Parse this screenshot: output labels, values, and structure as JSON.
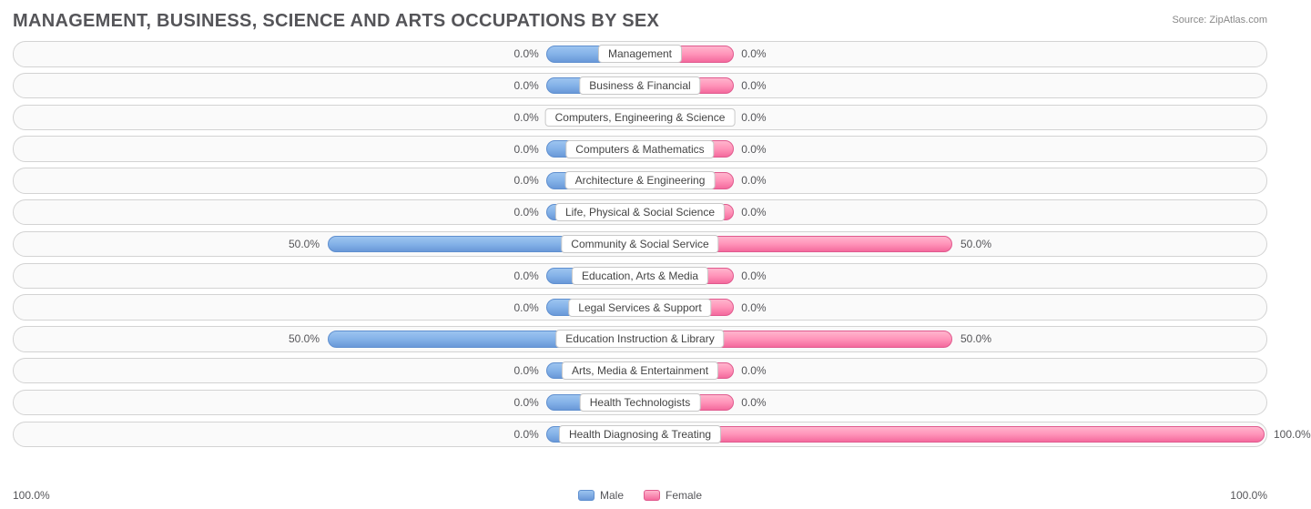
{
  "title": "MANAGEMENT, BUSINESS, SCIENCE AND ARTS OCCUPATIONS BY SEX",
  "source": "Source: ZipAtlas.com",
  "axis": {
    "left": "100.0%",
    "right": "100.0%",
    "max": 100.0
  },
  "legend": {
    "male": "Male",
    "female": "Female"
  },
  "chart": {
    "type": "diverging-bar",
    "min_bar_pct": 15.0,
    "background_color": "#ffffff",
    "row_bg": "#fafafa",
    "row_border": "#d3d3d3",
    "male_colors": [
      "#9cc4f0",
      "#84b2e8",
      "#6998d8"
    ],
    "female_colors": [
      "#ffb5cd",
      "#ff94b9",
      "#f46a9d"
    ],
    "label_box_bg": "#ffffff",
    "label_box_border": "#c9c9c9",
    "text_color": "#555559",
    "label_fontsize": 12,
    "title_color": "#555559",
    "title_fontsize": 20
  },
  "categories": [
    {
      "label": "Management",
      "male": 0.0,
      "female": 0.0
    },
    {
      "label": "Business & Financial",
      "male": 0.0,
      "female": 0.0
    },
    {
      "label": "Computers, Engineering & Science",
      "male": 0.0,
      "female": 0.0
    },
    {
      "label": "Computers & Mathematics",
      "male": 0.0,
      "female": 0.0
    },
    {
      "label": "Architecture & Engineering",
      "male": 0.0,
      "female": 0.0
    },
    {
      "label": "Life, Physical & Social Science",
      "male": 0.0,
      "female": 0.0
    },
    {
      "label": "Community & Social Service",
      "male": 50.0,
      "female": 50.0
    },
    {
      "label": "Education, Arts & Media",
      "male": 0.0,
      "female": 0.0
    },
    {
      "label": "Legal Services & Support",
      "male": 0.0,
      "female": 0.0
    },
    {
      "label": "Education Instruction & Library",
      "male": 50.0,
      "female": 50.0
    },
    {
      "label": "Arts, Media & Entertainment",
      "male": 0.0,
      "female": 0.0
    },
    {
      "label": "Health Technologists",
      "male": 0.0,
      "female": 0.0
    },
    {
      "label": "Health Diagnosing & Treating",
      "male": 0.0,
      "female": 100.0
    }
  ]
}
